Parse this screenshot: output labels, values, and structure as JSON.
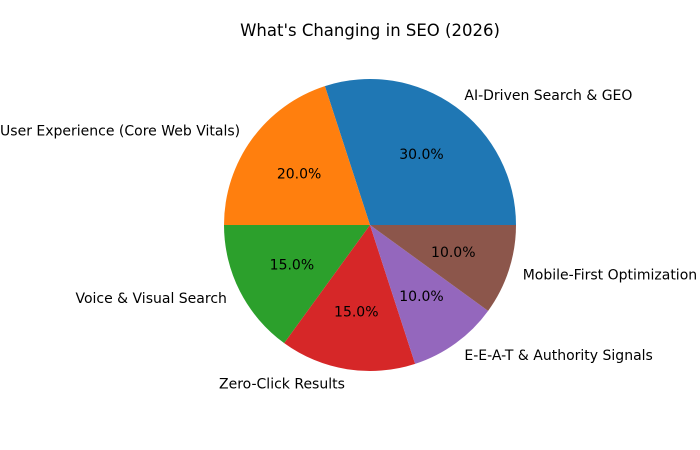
{
  "chart_data": {
    "type": "pie",
    "title": "What's Changing in SEO (2026)",
    "categories": [
      "AI-Driven Search & GEO",
      "User Experience (Core Web Vitals)",
      "Voice & Visual Search",
      "Zero-Click Results",
      "E-E-A-T & Authority Signals",
      "Mobile-First Optimization"
    ],
    "values": [
      30,
      20,
      15,
      15,
      10,
      10
    ],
    "pct_labels": [
      "30.0%",
      "20.0%",
      "15.0%",
      "15.0%",
      "10.0%",
      "10.0%"
    ],
    "colors": [
      "#1f77b4",
      "#ff7f0e",
      "#2ca02c",
      "#d62728",
      "#9467bd",
      "#8c564b"
    ],
    "start_angle": 0,
    "direction": "counterclockwise",
    "pct_distance": 0.6,
    "label_distance": 1.1,
    "legend": "none",
    "text_color": "#000000",
    "background_color": "#ffffff"
  }
}
